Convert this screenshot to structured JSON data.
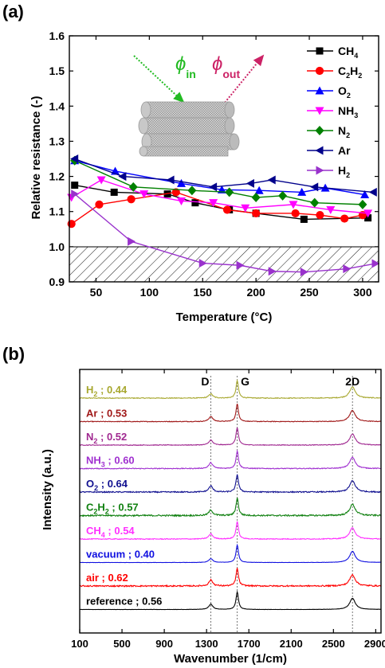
{
  "panel_a": {
    "label": "(a)",
    "inset": {
      "phi_in": "ϕ",
      "phi_in_sub": "in",
      "phi_out": "ϕ",
      "phi_out_sub": "out"
    }
  },
  "panel_b": {
    "label": "(b)"
  },
  "chart_data": [
    {
      "type": "line",
      "xlabel": "Temperature (°C)",
      "ylabel": "Relative resistance (-)",
      "xlim": [
        25,
        315
      ],
      "ylim": [
        0.9,
        1.6
      ],
      "xticks": [
        50,
        100,
        150,
        200,
        250,
        300
      ],
      "yticks": [
        0.9,
        1.0,
        1.1,
        1.2,
        1.3,
        1.4,
        1.5,
        1.6
      ],
      "grid": false,
      "legend": "right",
      "shaded_region": {
        "y_from": 0.9,
        "y_to": 1.0,
        "pattern": "diagonal hatch"
      },
      "series": [
        {
          "name": "CH4",
          "name_base": "CH",
          "name_sub": "4",
          "marker": "square",
          "color": "#000000",
          "x": [
            30,
            67,
            117,
            143,
            175,
            200,
            245,
            305
          ],
          "y": [
            1.175,
            1.155,
            1.15,
            1.125,
            1.105,
            1.095,
            1.078,
            1.082
          ]
        },
        {
          "name": "C2H2",
          "name_parts": [
            "C",
            "2",
            "H",
            "2"
          ],
          "marker": "circle",
          "color": "#ff0000",
          "x": [
            27,
            53,
            83,
            125,
            173,
            200,
            237,
            260,
            283,
            300
          ],
          "y": [
            1.065,
            1.12,
            1.135,
            1.155,
            1.105,
            1.095,
            1.095,
            1.09,
            1.08,
            1.09
          ]
        },
        {
          "name": "O2",
          "name_base": "O",
          "name_sub": "2",
          "marker": "triangle-up",
          "color": "#0000ff",
          "x": [
            30,
            68,
            130,
            168,
            203,
            243,
            265,
            302
          ],
          "y": [
            1.245,
            1.215,
            1.18,
            1.162,
            1.16,
            1.155,
            1.167,
            1.148
          ]
        },
        {
          "name": "NH3",
          "name_base": "NH",
          "name_sub": "3",
          "marker": "triangle-down",
          "color": "#ff00ff",
          "x": [
            27,
            55,
            95,
            130,
            160,
            190,
            235,
            270,
            305
          ],
          "y": [
            1.14,
            1.19,
            1.15,
            1.13,
            1.125,
            1.11,
            1.12,
            1.105,
            1.095
          ]
        },
        {
          "name": "N2",
          "name_base": "N",
          "name_sub": "2",
          "marker": "diamond",
          "color": "#008000",
          "x": [
            30,
            85,
            140,
            175,
            200,
            225,
            255,
            300
          ],
          "y": [
            1.245,
            1.17,
            1.16,
            1.155,
            1.14,
            1.145,
            1.125,
            1.12
          ]
        },
        {
          "name": "Ar",
          "marker": "triangle-left",
          "color": "#00008b",
          "x": [
            30,
            75,
            120,
            160,
            195,
            215,
            255,
            310
          ],
          "y": [
            1.25,
            1.2,
            1.19,
            1.17,
            1.18,
            1.19,
            1.17,
            1.155
          ]
        },
        {
          "name": "H2",
          "name_base": "H",
          "name_sub": "2",
          "marker": "triangle-right",
          "color": "#9932cc",
          "x": [
            30,
            83,
            150,
            185,
            215,
            245,
            285,
            312
          ],
          "y": [
            1.15,
            1.015,
            0.953,
            0.947,
            0.93,
            0.928,
            0.937,
            0.952
          ]
        }
      ]
    },
    {
      "type": "line",
      "xlabel": "Wavenumber (1/cm)",
      "ylabel": "Intensity (a.u.)",
      "xlim": [
        100,
        2950
      ],
      "xticks": [
        100,
        500,
        900,
        1300,
        1700,
        2100,
        2500,
        2900
      ],
      "yticks": [],
      "grid": false,
      "stacked_offset": true,
      "peak_labels": [
        {
          "text": "D",
          "x": 1340
        },
        {
          "text": "G",
          "x": 1590
        },
        {
          "text": "2D",
          "x": 2680
        }
      ],
      "series": [
        {
          "name": "H2 ; 0.44",
          "label_base": "H",
          "label_sub": "2",
          "label_rest": " ; 0.44",
          "color": "#a8a830",
          "id_ratio": 0.44,
          "noise": 0.25
        },
        {
          "name": "Ar ; 0.53",
          "label_base": "Ar",
          "label_sub": "",
          "label_rest": " ; 0.53",
          "color": "#a01818",
          "id_ratio": 0.53,
          "noise": 0.2
        },
        {
          "name": "N2 ; 0.52",
          "label_base": "N",
          "label_sub": "2",
          "label_rest": " ; 0.52",
          "color": "#a02890",
          "id_ratio": 0.52,
          "noise": 0.2
        },
        {
          "name": "NH3 ; 0.60",
          "label_base": "NH",
          "label_sub": "3",
          "label_rest": " ; 0.60",
          "color": "#a030d0",
          "id_ratio": 0.6,
          "noise": 0.25
        },
        {
          "name": "O2 ; 0.64",
          "label_base": "O",
          "label_sub": "2",
          "label_rest": " ; 0.64",
          "color": "#101090",
          "id_ratio": 0.64,
          "noise": 0.35
        },
        {
          "name": "C2H2 ; 0.57",
          "label_parts": [
            "C",
            "2",
            "H",
            "2"
          ],
          "label_rest": " ; 0.57",
          "color": "#108010",
          "id_ratio": 0.57,
          "noise": 0.45
        },
        {
          "name": "CH4 ; 0.54",
          "label_base": "CH",
          "label_sub": "4",
          "label_rest": " ; 0.54",
          "color": "#ff30ff",
          "id_ratio": 0.54,
          "noise": 0.25
        },
        {
          "name": "vacuum ; 0.40",
          "label_base": "vacuum",
          "label_sub": "",
          "label_rest": " ; 0.40",
          "color": "#1010e0",
          "id_ratio": 0.4,
          "noise": 0.08
        },
        {
          "name": "air ; 0.62",
          "label_base": "air",
          "label_sub": "",
          "label_rest": " ; 0.62",
          "color": "#ff0000",
          "id_ratio": 0.62,
          "noise": 0.4
        },
        {
          "name": "reference ; 0.56",
          "label_base": "reference",
          "label_sub": "",
          "label_rest": " ; 0.56",
          "color": "#000000",
          "id_ratio": 0.56,
          "noise": 0.08
        }
      ]
    }
  ]
}
